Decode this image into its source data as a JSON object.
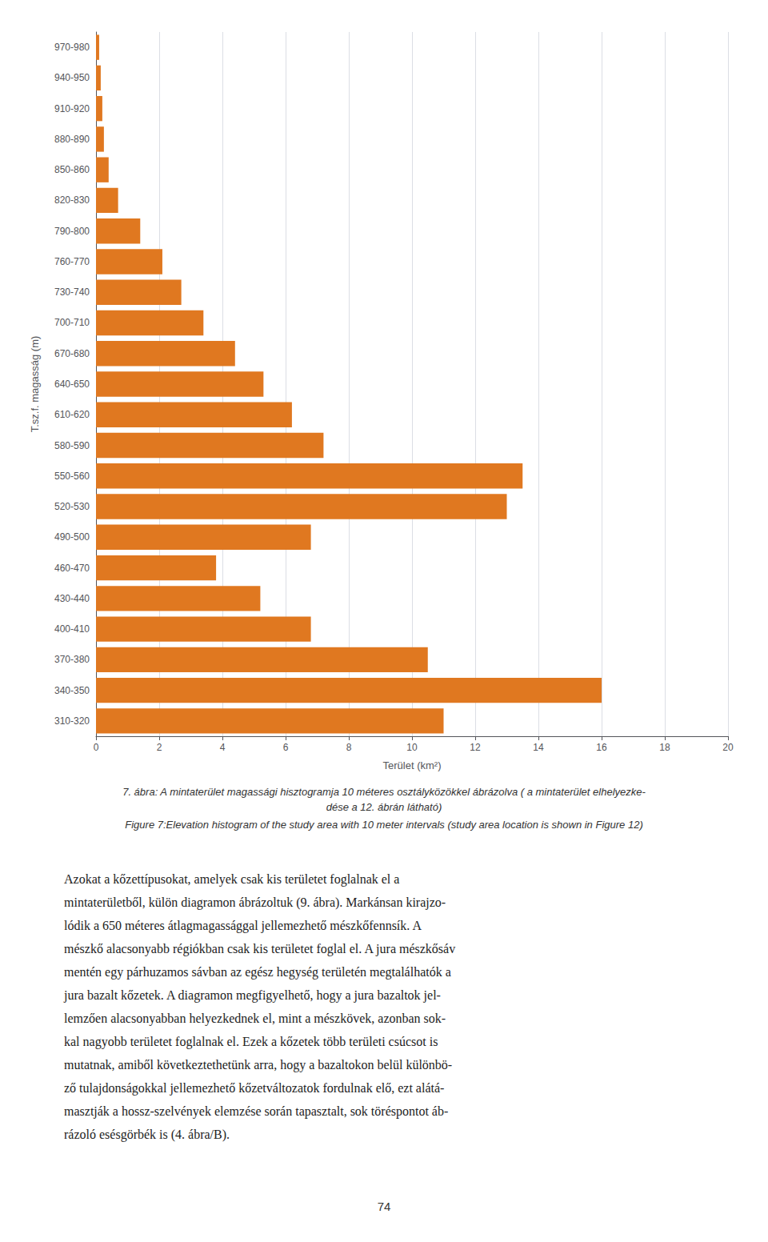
{
  "chart_data": {
    "type": "bar",
    "orientation": "horizontal",
    "title": "7. ábra: A mintaterület magassági hisztogramja 10 méteres osztályközökkel ábrázolva ( a mintaterület elhelyezke-\ndése a 12. ábrán látható)",
    "subtitle": "Figure 7:Elevation histogram of the study area with 10 meter intervals (study area location is shown in Figure 12)",
    "xlabel": "Terület (km²)",
    "ylabel": "T.sz.f. magasság (m)",
    "categories": [
      "970-980",
      "940-950",
      "910-920",
      "880-890",
      "850-860",
      "820-830",
      "790-800",
      "760-770",
      "730-740",
      "700-710",
      "670-680",
      "640-650",
      "610-620",
      "580-590",
      "550-560",
      "520-530",
      "490-500",
      "460-470",
      "430-440",
      "400-410",
      "370-380",
      "340-350",
      "310-320"
    ],
    "values": [
      0.1,
      0.15,
      0.2,
      0.25,
      0.4,
      0.7,
      1.4,
      2.1,
      2.7,
      3.4,
      4.4,
      5.3,
      6.2,
      7.2,
      13.5,
      13.0,
      6.8,
      3.8,
      5.2,
      6.8,
      10.5,
      16.0,
      11.0
    ],
    "color": "#E07820",
    "xlim": [
      0,
      20
    ],
    "xticks": [
      0,
      2,
      4,
      6,
      8,
      10,
      12,
      14,
      16,
      18,
      20
    ],
    "grid": true,
    "annotations": [
      "Azokat a kőzettípusokat, amelyek csak kis területet foglalnak el a",
      "mintaterületből, külön diagramon ábrázoltuk (9. ábra). Markánsan kirajzo-",
      "lódik a 650 méteres átlagmagassággal jellemezhető mészkőfennsík. A",
      "mészkő alacsonyabb régiókban csak kis területet foglal el. A jura mészkősáv",
      "mentén egy párhuzamos sávban az egész hegység területén megtalálhatók a",
      "jura bazalt kőzetek. A diagramon megfigyelhető, hogy a jura bazaltok jel-",
      "lemzően alacsonyabban helyezkednek el, mint a mészkövek, azonban sok-",
      "kal nagyobb területet foglalnak el. Ezek a kőzetek több területi csúcsot is",
      "mutatnak, amiből következtethetünk arra, hogy a bazaltokon belül különbö-",
      "ző tulajdonságokkal jellemezhető kőzetváltozatok fordulnak elő, ezt alátá-",
      "masztják a hossz-szelvények elemzése során tapasztalt, sok töréspontot áb-",
      "rázoló esésgörbék is (4. ábra/B).",
      "74"
    ]
  }
}
